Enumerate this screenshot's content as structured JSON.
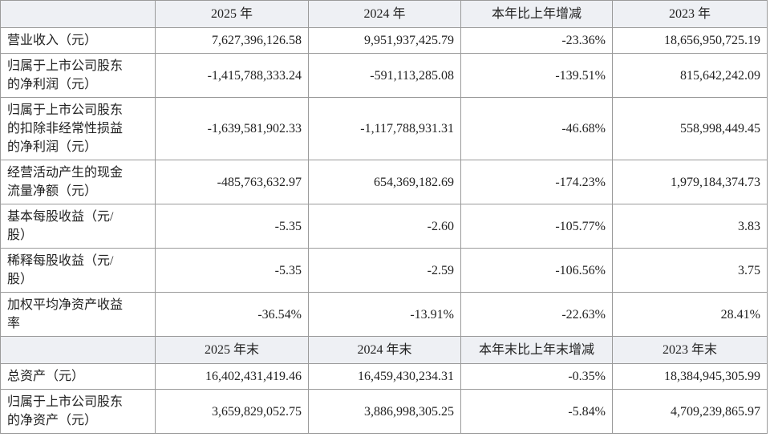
{
  "sections": [
    {
      "header": [
        "2025 年",
        "2024 年",
        "本年比上年增减",
        "2023 年"
      ],
      "rows": [
        [
          "营业收入（元）",
          "7,627,396,126.58",
          "9,951,937,425.79",
          "-23.36%",
          "18,656,950,725.19"
        ],
        [
          "归属于上市公司股东的净利润（元）",
          "-1,415,788,333.24",
          "-591,113,285.08",
          "-139.51%",
          "815,642,242.09"
        ],
        [
          "归属于上市公司股东的扣除非经常性损益的净利润（元）",
          "-1,639,581,902.33",
          "-1,117,788,931.31",
          "-46.68%",
          "558,998,449.45"
        ],
        [
          "经营活动产生的现金流量净额（元）",
          "-485,763,632.97",
          "654,369,182.69",
          "-174.23%",
          "1,979,184,374.73"
        ],
        [
          "基本每股收益（元/股）",
          "-5.35",
          "-2.60",
          "-105.77%",
          "3.83"
        ],
        [
          "稀释每股收益（元/股）",
          "-5.35",
          "-2.59",
          "-106.56%",
          "3.75"
        ],
        [
          "加权平均净资产收益率",
          "-36.54%",
          "-13.91%",
          "-22.63%",
          "28.41%"
        ]
      ]
    },
    {
      "header": [
        "2025 年末",
        "2024 年末",
        "本年末比上年末增减",
        "2023 年末"
      ],
      "rows": [
        [
          "总资产（元）",
          "16,402,431,419.46",
          "16,459,430,234.31",
          "-0.35%",
          "18,384,945,305.99"
        ],
        [
          "归属于上市公司股东的净资产（元）",
          "3,659,829,052.75",
          "3,886,998,305.25",
          "-5.84%",
          "4,709,239,865.97"
        ]
      ]
    }
  ]
}
